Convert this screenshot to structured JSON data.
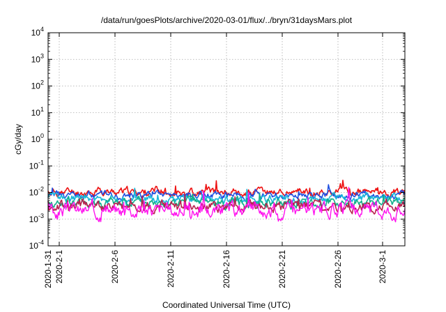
{
  "chart_data": {
    "type": "line",
    "title": "/data/run/goesPlots/archive/2020-03-01/flux/../bryn/31daysMars.plot",
    "xlabel": "Coordinated Universal Time (UTC)",
    "ylabel": "cGy/day",
    "y_scale": "log",
    "ylim": [
      0.0001,
      10000
    ],
    "xlim": [
      "2020-01-31",
      "2020-03-03"
    ],
    "x_ticks": [
      "2020-1-31",
      "2020-2-1",
      "2020-2-6",
      "2020-2-11",
      "2020-2-16",
      "2020-2-21",
      "2020-2-26",
      "2020-3-1"
    ],
    "y_ticks": [
      {
        "value": 10000,
        "base": "10",
        "exp": "4"
      },
      {
        "value": 1000,
        "base": "10",
        "exp": "3"
      },
      {
        "value": 100,
        "base": "10",
        "exp": "2"
      },
      {
        "value": 10,
        "base": "10",
        "exp": "1"
      },
      {
        "value": 1,
        "base": "10",
        "exp": "0"
      },
      {
        "value": 0.1,
        "base": "10",
        "exp": "-1"
      },
      {
        "value": 0.01,
        "base": "10",
        "exp": "-2"
      },
      {
        "value": 0.001,
        "base": "10",
        "exp": "-3"
      },
      {
        "value": 0.0001,
        "base": "10",
        "exp": "-4"
      }
    ],
    "grid": true,
    "series": [
      {
        "color": "#ee1111",
        "base": 0.0105,
        "spread": 0.22,
        "seed": 11
      },
      {
        "color": "#1f4fe0",
        "base": 0.008,
        "spread": 0.2,
        "seed": 23
      },
      {
        "color": "#19b7d9",
        "base": 0.0058,
        "spread": 0.22,
        "seed": 37
      },
      {
        "color": "#13b08a",
        "base": 0.004,
        "spread": 0.26,
        "seed": 41
      },
      {
        "color": "#b8224e",
        "base": 0.003,
        "spread": 0.28,
        "seed": 53
      },
      {
        "color": "#ff11ee",
        "base": 0.0022,
        "spread": 0.4,
        "seed": 67
      }
    ]
  }
}
